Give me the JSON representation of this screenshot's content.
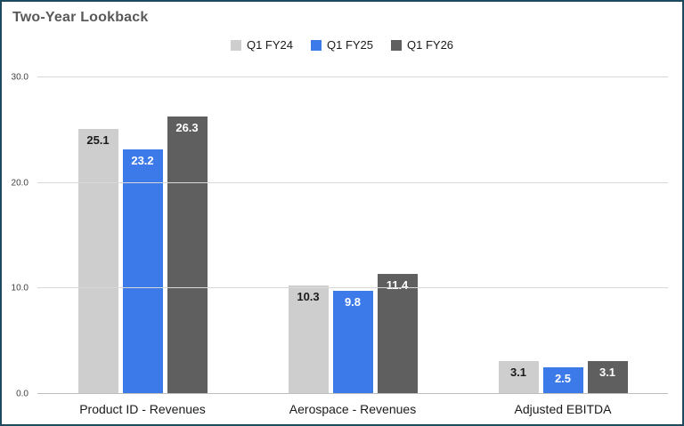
{
  "colors": {
    "frame_border": "#1c4a5f",
    "title": "#595959",
    "gridline": "#d9d9d9",
    "baseline": "#bdbdbd"
  },
  "chart_data": {
    "type": "bar",
    "title": "Two-Year Lookback",
    "xlabel": "",
    "ylabel": "",
    "ylim": [
      0,
      30
    ],
    "grid": true,
    "legend_position": "top-center",
    "yticks": [
      {
        "v": 0,
        "label": "0.0"
      },
      {
        "v": 10,
        "label": "10.0"
      },
      {
        "v": 20,
        "label": "20.0"
      },
      {
        "v": 30,
        "label": "30.0"
      }
    ],
    "categories": [
      "Product ID - Revenues",
      "Aerospace - Revenues",
      "Adjusted EBITDA"
    ],
    "series": [
      {
        "name": "Q1 FY24",
        "color": "#cecece",
        "label_color": "#1a1a1a",
        "values": [
          25.1,
          10.3,
          3.1
        ]
      },
      {
        "name": "Q1 FY25",
        "color": "#3b7ae8",
        "label_color": "#ffffff",
        "values": [
          23.2,
          9.8,
          2.5
        ]
      },
      {
        "name": "Q1 FY26",
        "color": "#5f5f5f",
        "label_color": "#ffffff",
        "values": [
          26.3,
          11.4,
          3.1
        ]
      }
    ]
  }
}
